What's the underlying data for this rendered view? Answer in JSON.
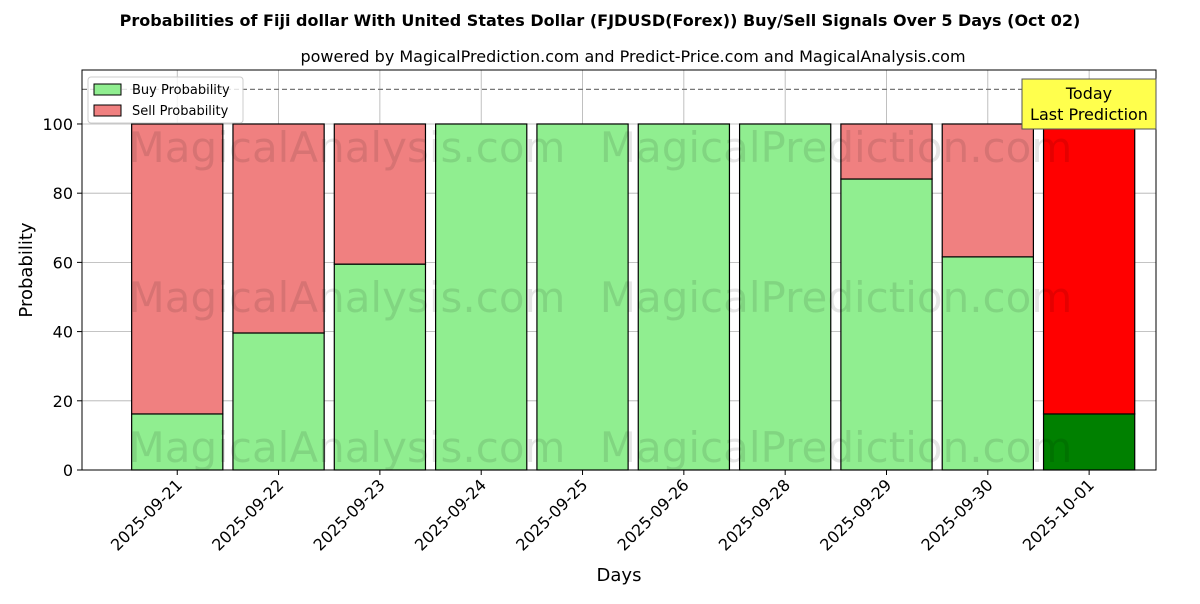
{
  "chart_data": {
    "type": "bar",
    "stacked": true,
    "title": "Probabilities of Fiji dollar With United States Dollar (FJDUSD(Forex)) Buy/Sell Signals Over 5 Days (Oct 02)",
    "subtitle": "powered by MagicalPrediction.com and Predict-Price.com and MagicalAnalysis.com",
    "xlabel": "Days",
    "ylabel": "Probability",
    "ylim": [
      0,
      115.6
    ],
    "yticks": [
      0,
      20,
      40,
      60,
      80,
      100
    ],
    "grid": true,
    "legend_position": "top-left",
    "categories": [
      "2025-09-21",
      "2025-09-22",
      "2025-09-23",
      "2025-09-24",
      "2025-09-25",
      "2025-09-26",
      "2025-09-28",
      "2025-09-29",
      "2025-09-30",
      "2025-10-01"
    ],
    "series": [
      {
        "name": "Buy Probability",
        "values": [
          16.2,
          39.6,
          59.5,
          100,
          100,
          100,
          100,
          84.1,
          61.6,
          16.2
        ],
        "color": "#90ee90"
      },
      {
        "name": "Sell Probability",
        "values": [
          83.8,
          60.4,
          40.5,
          0,
          0,
          0,
          0,
          15.9,
          38.4,
          83.8
        ],
        "color": "#f08080"
      }
    ],
    "highlight": {
      "index": 9,
      "buy_color": "#008000",
      "sell_color": "#ff0000"
    },
    "reference_line": 110,
    "annotation": {
      "line1": "Today",
      "line2": "Last Prediction",
      "color": "#ffff4d"
    },
    "watermarks": [
      "MagicalAnalysis.com",
      "MagicalPrediction.com"
    ]
  }
}
